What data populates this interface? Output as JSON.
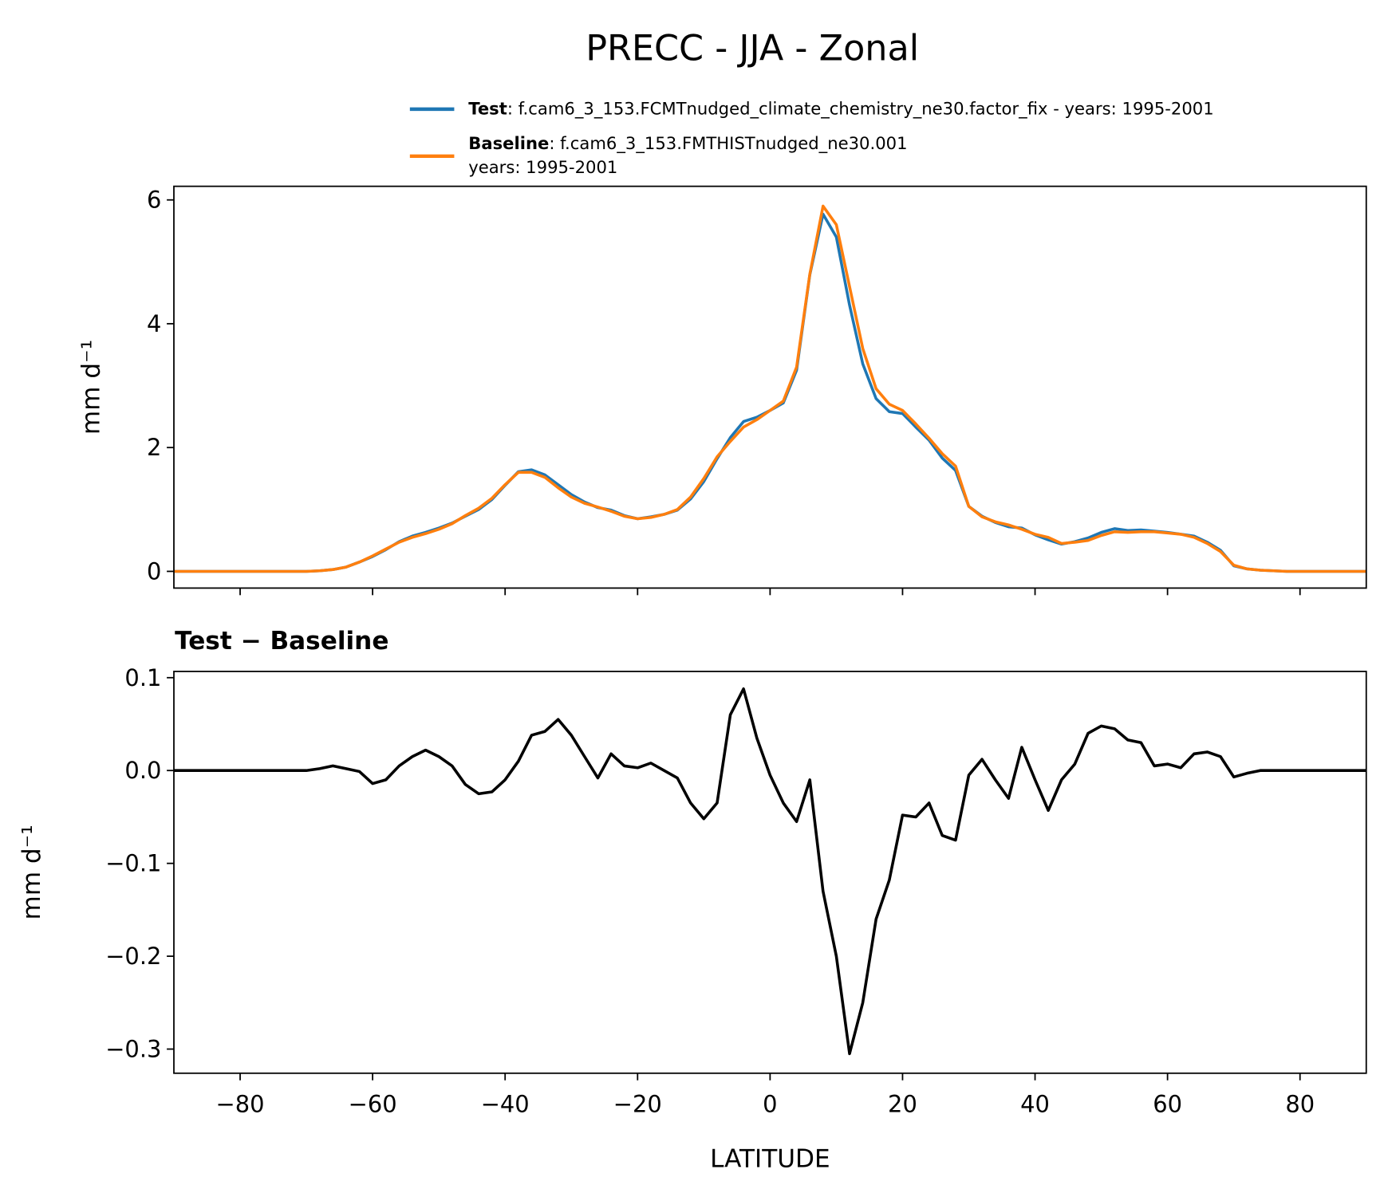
{
  "chart_data": [
    {
      "type": "line",
      "title": "PRECC - JJA - Zonal",
      "ylabel": "mm d⁻¹",
      "x": [
        -90,
        -88,
        -86,
        -84,
        -82,
        -80,
        -78,
        -76,
        -74,
        -72,
        -70,
        -68,
        -66,
        -64,
        -62,
        -60,
        -58,
        -56,
        -54,
        -52,
        -50,
        -48,
        -46,
        -44,
        -42,
        -40,
        -38,
        -36,
        -34,
        -32,
        -30,
        -28,
        -26,
        -24,
        -22,
        -20,
        -18,
        -16,
        -14,
        -12,
        -10,
        -8,
        -6,
        -4,
        -2,
        0,
        2,
        4,
        6,
        8,
        10,
        12,
        14,
        16,
        18,
        20,
        22,
        24,
        26,
        28,
        30,
        32,
        34,
        36,
        38,
        40,
        42,
        44,
        46,
        48,
        50,
        52,
        54,
        56,
        58,
        60,
        62,
        64,
        66,
        68,
        70,
        72,
        74,
        76,
        78,
        80,
        82,
        84,
        86,
        88,
        90
      ],
      "series": [
        {
          "name": "Test",
          "description": [
            ": f.cam6_3_153.FCMTnudged_climate_chemistry_ne30.factor_fix - years: 1995-2001"
          ],
          "color": "#1f77b4",
          "values": [
            0,
            0,
            0,
            0,
            0,
            0,
            0,
            0,
            0,
            0,
            0,
            0.01,
            0.03,
            0.07,
            0.15,
            0.24,
            0.35,
            0.48,
            0.57,
            0.63,
            0.7,
            0.78,
            0.89,
            1.0,
            1.16,
            1.39,
            1.61,
            1.64,
            1.56,
            1.4,
            1.24,
            1.12,
            1.03,
            0.99,
            0.9,
            0.85,
            0.88,
            0.92,
            0.99,
            1.17,
            1.45,
            1.82,
            2.16,
            2.42,
            2.49,
            2.6,
            2.72,
            3.25,
            4.79,
            5.77,
            5.4,
            4.3,
            3.35,
            2.79,
            2.58,
            2.55,
            2.33,
            2.12,
            1.83,
            1.63,
            1.05,
            0.89,
            0.79,
            0.72,
            0.7,
            0.59,
            0.51,
            0.44,
            0.48,
            0.54,
            0.63,
            0.69,
            0.66,
            0.67,
            0.65,
            0.63,
            0.6,
            0.57,
            0.47,
            0.34,
            0.09,
            0.04,
            0.02,
            0.01,
            0,
            0,
            0,
            0,
            0,
            0,
            0
          ]
        },
        {
          "name": "Baseline",
          "description": [
            ": f.cam6_3_153.FMTHISTnudged_ne30.001",
            "years: 1995-2001"
          ],
          "color": "#ff7f0e",
          "values": [
            0,
            0,
            0,
            0,
            0,
            0,
            0,
            0,
            0,
            0,
            0,
            0.01,
            0.03,
            0.07,
            0.15,
            0.25,
            0.36,
            0.47,
            0.55,
            0.61,
            0.68,
            0.77,
            0.9,
            1.02,
            1.18,
            1.4,
            1.6,
            1.6,
            1.52,
            1.35,
            1.2,
            1.1,
            1.04,
            0.97,
            0.89,
            0.85,
            0.87,
            0.92,
            1.0,
            1.2,
            1.5,
            1.85,
            2.1,
            2.33,
            2.45,
            2.6,
            2.75,
            3.3,
            4.8,
            5.9,
            5.6,
            4.6,
            3.6,
            2.95,
            2.7,
            2.6,
            2.38,
            2.15,
            1.9,
            1.7,
            1.05,
            0.88,
            0.8,
            0.75,
            0.68,
            0.6,
            0.55,
            0.45,
            0.47,
            0.5,
            0.58,
            0.64,
            0.63,
            0.64,
            0.64,
            0.62,
            0.6,
            0.55,
            0.45,
            0.32,
            0.1,
            0.04,
            0.02,
            0.01,
            0,
            0,
            0,
            0,
            0,
            0,
            0
          ]
        }
      ],
      "xlim": [
        -90,
        90
      ],
      "xticks": [
        -80,
        -60,
        -40,
        -20,
        0,
        20,
        40,
        60,
        80
      ],
      "ylim": [
        -0.27,
        6.22
      ],
      "yticks": [
        0,
        2,
        4,
        6
      ]
    },
    {
      "type": "line",
      "title": "Test − Baseline",
      "xlabel": "LATITUDE",
      "ylabel": "mm d⁻¹",
      "x": [
        -90,
        -88,
        -86,
        -84,
        -82,
        -80,
        -78,
        -76,
        -74,
        -72,
        -70,
        -68,
        -66,
        -64,
        -62,
        -60,
        -58,
        -56,
        -54,
        -52,
        -50,
        -48,
        -46,
        -44,
        -42,
        -40,
        -38,
        -36,
        -34,
        -32,
        -30,
        -28,
        -26,
        -24,
        -22,
        -20,
        -18,
        -16,
        -14,
        -12,
        -10,
        -8,
        -6,
        -4,
        -2,
        0,
        2,
        4,
        6,
        8,
        10,
        12,
        14,
        16,
        18,
        20,
        22,
        24,
        26,
        28,
        30,
        32,
        34,
        36,
        38,
        40,
        42,
        44,
        46,
        48,
        50,
        52,
        54,
        56,
        58,
        60,
        62,
        64,
        66,
        68,
        70,
        72,
        74,
        76,
        78,
        80,
        82,
        84,
        86,
        88,
        90
      ],
      "series": [
        {
          "color": "#000000",
          "values": [
            0,
            0,
            0,
            0,
            0,
            0,
            0,
            0,
            0,
            0,
            0,
            0.002,
            0.005,
            0.002,
            -0.001,
            -0.014,
            -0.01,
            0.005,
            0.015,
            0.022,
            0.015,
            0.005,
            -0.015,
            -0.025,
            -0.023,
            -0.01,
            0.01,
            0.038,
            0.042,
            0.055,
            0.038,
            0.015,
            -0.008,
            0.018,
            0.005,
            0.003,
            0.008,
            0,
            -0.008,
            -0.035,
            -0.052,
            -0.035,
            0.06,
            0.088,
            0.035,
            -0.005,
            -0.035,
            -0.055,
            -0.01,
            -0.13,
            -0.2,
            -0.305,
            -0.25,
            -0.16,
            -0.118,
            -0.048,
            -0.05,
            -0.035,
            -0.07,
            -0.075,
            -0.005,
            0.012,
            -0.01,
            -0.03,
            0.025,
            -0.01,
            -0.043,
            -0.01,
            0.007,
            0.04,
            0.048,
            0.045,
            0.033,
            0.03,
            0.005,
            0.007,
            0.003,
            0.018,
            0.02,
            0.015,
            -0.007,
            -0.003,
            0,
            0,
            0,
            0,
            0,
            0,
            0,
            0,
            0
          ]
        }
      ],
      "xlim": [
        -90,
        90
      ],
      "xticks": [
        {
          "value": -80,
          "label": "−80"
        },
        {
          "value": -60,
          "label": "−60"
        },
        {
          "value": -40,
          "label": "−40"
        },
        {
          "value": -20,
          "label": "−20"
        },
        0,
        20,
        40,
        60,
        80
      ],
      "ylim": [
        -0.326,
        0.1067
      ],
      "yticks": [
        {
          "value": -0.3,
          "label": "−0.3"
        },
        {
          "value": -0.2,
          "label": "−0.2"
        },
        {
          "value": -0.1,
          "label": "−0.1"
        },
        {
          "value": 0,
          "label": "0.0"
        },
        0.1
      ]
    }
  ]
}
